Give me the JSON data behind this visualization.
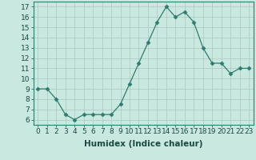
{
  "x": [
    0,
    1,
    2,
    3,
    4,
    5,
    6,
    7,
    8,
    9,
    10,
    11,
    12,
    13,
    14,
    15,
    16,
    17,
    18,
    19,
    20,
    21,
    22,
    23
  ],
  "y": [
    9,
    9,
    8,
    6.5,
    6,
    6.5,
    6.5,
    6.5,
    6.5,
    7.5,
    9.5,
    11.5,
    13.5,
    15.5,
    17,
    16,
    16.5,
    15.5,
    13,
    11.5,
    11.5,
    10.5,
    11,
    11
  ],
  "line_color": "#2e7d6e",
  "marker": "D",
  "marker_size": 2.5,
  "bg_color": "#c8e8e0",
  "grid_color": "#aac8c0",
  "xlabel": "Humidex (Indice chaleur)",
  "xlim": [
    -0.5,
    23.5
  ],
  "ylim": [
    5.5,
    17.5
  ],
  "yticks": [
    6,
    7,
    8,
    9,
    10,
    11,
    12,
    13,
    14,
    15,
    16,
    17
  ],
  "xticks": [
    0,
    1,
    2,
    3,
    4,
    5,
    6,
    7,
    8,
    9,
    10,
    11,
    12,
    13,
    14,
    15,
    16,
    17,
    18,
    19,
    20,
    21,
    22,
    23
  ],
  "tick_fontsize": 6.5,
  "xlabel_fontsize": 7.5
}
